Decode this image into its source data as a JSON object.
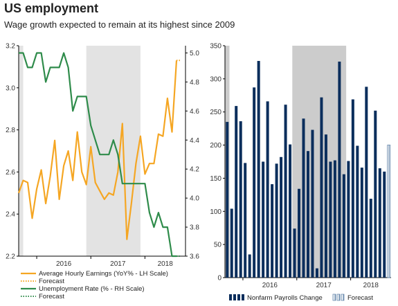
{
  "header": {
    "title": "US employment",
    "subtitle": "Wage growth expected to remain at its highest since 2009"
  },
  "colors": {
    "earnings": "#F5A623",
    "unemployment": "#2E8B4A",
    "payrolls": "#0B2E5C",
    "shade": "#E3E3E3",
    "shade_right": "#CCCCCC",
    "axis": "#000000"
  },
  "chart_data": [
    {
      "type": "line",
      "x_tick_labels": [
        "2016",
        "2017",
        "2018"
      ],
      "y_left_ticks": [
        "2.2",
        "2.4",
        "2.6",
        "2.8",
        "3.0",
        "3.2"
      ],
      "y_right_ticks": [
        "3.6",
        "3.8",
        "4.0",
        "4.2",
        "4.4",
        "4.6",
        "4.8",
        "5.0"
      ],
      "ylim_left": [
        2.2,
        3.2
      ],
      "ylim_right": [
        3.6,
        5.05
      ],
      "xlim": [
        "2015-09",
        "2018-10"
      ],
      "shaded_periods": [
        [
          "2015-09",
          "2015-10"
        ],
        [
          "2016-12",
          "2017-12"
        ]
      ],
      "series": [
        {
          "name": "Average Hourly Earnings (YoY% - LH Scale)",
          "axis": "left",
          "x": [
            "2015-09",
            "2015-10",
            "2015-11",
            "2015-12",
            "2016-01",
            "2016-02",
            "2016-03",
            "2016-04",
            "2016-05",
            "2016-06",
            "2016-07",
            "2016-08",
            "2016-09",
            "2016-10",
            "2016-11",
            "2016-12",
            "2017-01",
            "2017-02",
            "2017-03",
            "2017-04",
            "2017-05",
            "2017-06",
            "2017-07",
            "2017-08",
            "2017-09",
            "2017-10",
            "2017-11",
            "2017-12",
            "2018-01",
            "2018-02",
            "2018-03",
            "2018-04",
            "2018-05",
            "2018-06",
            "2018-07",
            "2018-08"
          ],
          "values": [
            2.5,
            2.56,
            2.55,
            2.38,
            2.52,
            2.61,
            2.45,
            2.58,
            2.75,
            2.47,
            2.63,
            2.7,
            2.56,
            2.79,
            2.6,
            2.54,
            2.72,
            2.55,
            2.51,
            2.47,
            2.5,
            2.49,
            2.6,
            2.83,
            2.28,
            2.45,
            2.64,
            2.77,
            2.59,
            2.64,
            2.64,
            2.78,
            2.77,
            2.95,
            2.79,
            3.13
          ]
        },
        {
          "name": "Forecast",
          "axis": "left",
          "style": "dotted",
          "x": [
            "2018-08",
            "2018-09"
          ],
          "values": [
            3.13,
            3.13
          ]
        },
        {
          "name": "Unemployment Rate (% - RH Scale)",
          "axis": "right",
          "x": [
            "2015-09",
            "2015-10",
            "2015-11",
            "2015-12",
            "2016-01",
            "2016-02",
            "2016-03",
            "2016-04",
            "2016-05",
            "2016-06",
            "2016-07",
            "2016-08",
            "2016-09",
            "2016-10",
            "2016-11",
            "2016-12",
            "2017-01",
            "2017-02",
            "2017-03",
            "2017-04",
            "2017-05",
            "2017-06",
            "2017-07",
            "2017-08",
            "2017-09",
            "2017-10",
            "2017-11",
            "2017-12",
            "2018-01",
            "2018-02",
            "2018-03",
            "2018-04",
            "2018-05",
            "2018-06",
            "2018-07",
            "2018-08"
          ],
          "values": [
            5.0,
            5.0,
            4.9,
            4.9,
            5.0,
            5.0,
            4.8,
            4.9,
            4.9,
            4.9,
            5.0,
            4.9,
            4.6,
            4.7,
            4.7,
            4.7,
            4.5,
            4.4,
            4.3,
            4.3,
            4.3,
            4.4,
            4.3,
            4.1,
            4.1,
            4.1,
            4.1,
            4.1,
            4.1,
            3.9,
            3.8,
            3.9,
            3.8,
            3.8,
            3.6,
            3.6
          ]
        },
        {
          "name": "Forecast",
          "axis": "right",
          "style": "dotted",
          "x": [
            "2018-08",
            "2018-09"
          ],
          "values": [
            3.6,
            3.6
          ]
        }
      ]
    },
    {
      "type": "bar",
      "x_tick_labels": [
        "2016",
        "2017",
        "2018"
      ],
      "y_ticks": [
        "0",
        "50",
        "100",
        "150",
        "200",
        "250",
        "300",
        "350"
      ],
      "ylim": [
        0,
        350
      ],
      "xlim": [
        "2015-09",
        "2018-10"
      ],
      "shaded_periods": [
        [
          "2015-09",
          "2015-10"
        ],
        [
          "2016-12",
          "2017-12"
        ]
      ],
      "series": [
        {
          "name": "Nonfarm Payrolls Change",
          "x": [
            "2015-09",
            "2015-10",
            "2015-11",
            "2015-12",
            "2016-01",
            "2016-02",
            "2016-03",
            "2016-04",
            "2016-05",
            "2016-06",
            "2016-07",
            "2016-08",
            "2016-09",
            "2016-10",
            "2016-11",
            "2016-12",
            "2017-01",
            "2017-02",
            "2017-03",
            "2017-04",
            "2017-05",
            "2017-06",
            "2017-07",
            "2017-08",
            "2017-09",
            "2017-10",
            "2017-11",
            "2017-12",
            "2018-01",
            "2018-02",
            "2018-03",
            "2018-04",
            "2018-05",
            "2018-06",
            "2018-07",
            "2018-08"
          ],
          "values": [
            235,
            104,
            259,
            236,
            173,
            35,
            287,
            327,
            175,
            266,
            141,
            172,
            182,
            261,
            201,
            74,
            134,
            240,
            191,
            223,
            14,
            272,
            216,
            175,
            177,
            326,
            156,
            176,
            269,
            199,
            166,
            288,
            119,
            252,
            165,
            160
          ]
        },
        {
          "name": "Forecast",
          "style": "hatched",
          "x": [
            "2018-09"
          ],
          "values": [
            200
          ]
        }
      ]
    }
  ]
}
